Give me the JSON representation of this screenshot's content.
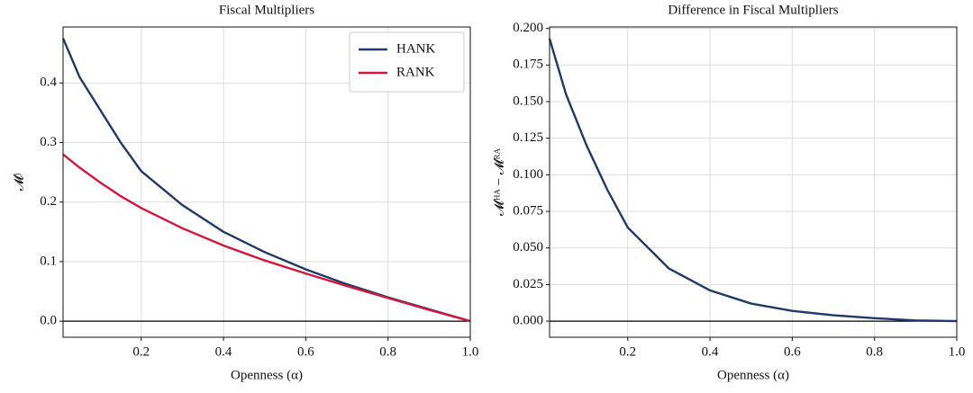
{
  "chart_data": [
    {
      "type": "line",
      "title": "Fiscal Multipliers",
      "xlabel": "Openness (α)",
      "ylabel": "𝓜ʲ",
      "x": [
        0.01,
        0.05,
        0.1,
        0.15,
        0.2,
        0.3,
        0.4,
        0.5,
        0.6,
        0.7,
        0.8,
        0.9,
        1.0
      ],
      "series": [
        {
          "name": "HANK",
          "color": "#1f3a66",
          "values": [
            0.475,
            0.41,
            0.355,
            0.3,
            0.252,
            0.195,
            0.15,
            0.116,
            0.087,
            0.062,
            0.04,
            0.02,
            0
          ]
        },
        {
          "name": "RANK",
          "color": "#d0183c",
          "values": [
            0.28,
            0.258,
            0.233,
            0.21,
            0.19,
            0.156,
            0.127,
            0.102,
            0.08,
            0.059,
            0.039,
            0.019,
            0
          ]
        }
      ],
      "xlim": [
        0.01,
        1.0
      ],
      "ylim": [
        -0.027,
        0.494
      ],
      "xticks": [
        0.2,
        0.4,
        0.6,
        0.8,
        {
          "value": 1.0,
          "label": "1.0"
        }
      ],
      "yticks": [
        {
          "value": 0,
          "label": "0.0"
        },
        0.1,
        0.2,
        0.3,
        0.4
      ],
      "grid": true,
      "legend": "upper right"
    },
    {
      "type": "line",
      "title": "Difference in Fiscal Multipliers",
      "xlabel": "Openness (α)",
      "ylabel": "𝓜ᴴᴬ − 𝓜ᴿᴬ",
      "x": [
        0.01,
        0.05,
        0.1,
        0.15,
        0.2,
        0.3,
        0.4,
        0.5,
        0.6,
        0.7,
        0.8,
        0.9,
        1.0
      ],
      "series": [
        {
          "color": "#1f3a66",
          "values": [
            0.193,
            0.155,
            0.12,
            0.09,
            0.064,
            0.036,
            0.021,
            0.012,
            0.007,
            0.004,
            0.002,
            0.0005,
            0
          ]
        }
      ],
      "xlim": [
        0.01,
        1.0
      ],
      "ylim": [
        -0.011,
        0.201
      ],
      "xticks": [
        0.2,
        0.4,
        0.6,
        0.8,
        {
          "value": 1.0,
          "label": "1.0"
        }
      ],
      "yticks": [
        {
          "value": 0,
          "label": "0.000"
        },
        {
          "value": 0.025,
          "label": "0.025"
        },
        {
          "value": 0.05,
          "label": "0.050"
        },
        {
          "value": 0.075,
          "label": "0.075"
        },
        {
          "value": 0.1,
          "label": "0.100"
        },
        {
          "value": 0.125,
          "label": "0.125"
        },
        {
          "value": 0.15,
          "label": "0.150"
        },
        {
          "value": 0.175,
          "label": "0.175"
        },
        {
          "value": 0.2,
          "label": "0.200"
        }
      ],
      "grid": true
    }
  ]
}
